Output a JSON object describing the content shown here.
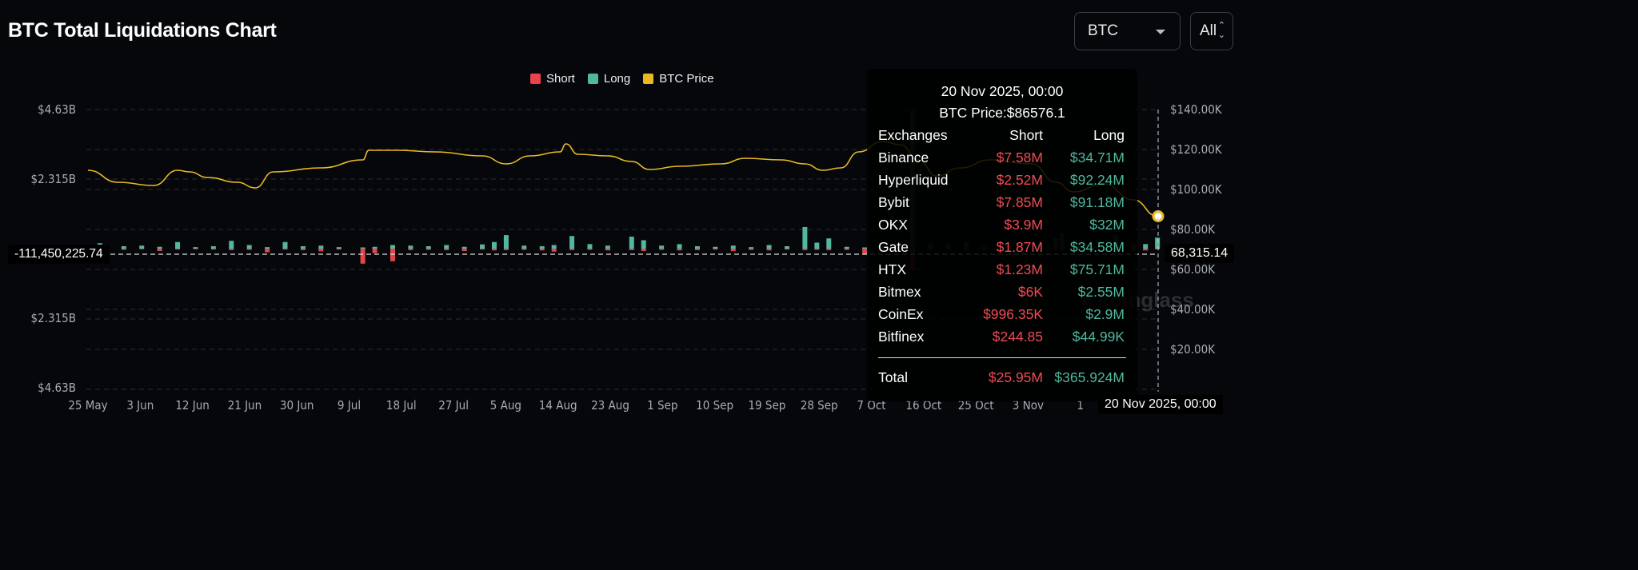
{
  "header": {
    "title": "BTC Total Liquidations Chart",
    "coin_select": "BTC",
    "range_select": "All"
  },
  "legend": [
    {
      "label": "Short",
      "color": "#e8434c"
    },
    {
      "label": "Long",
      "color": "#4fb89e"
    },
    {
      "label": "BTC Price",
      "color": "#e8b923"
    }
  ],
  "watermark": "coinglass",
  "chart_data": {
    "type": "bar",
    "title": "BTC Total Liquidations Chart",
    "left_axis": {
      "ticks": [
        "$4.63B",
        "$2.315B",
        "$2.315B",
        "$4.63B"
      ],
      "values": [
        4.63,
        2.315,
        -2.315,
        -4.63
      ],
      "range_billion": [
        -4.63,
        4.63
      ]
    },
    "right_axis": {
      "ticks": [
        "$140.00K",
        "$120.00K",
        "$100.00K",
        "$80.00K",
        "$60.00K",
        "$40.00K",
        "$20.00K"
      ],
      "values": [
        140,
        120,
        100,
        80,
        60,
        40,
        20
      ],
      "range_k": [
        0,
        140
      ]
    },
    "x_ticks": [
      "25 May",
      "3 Jun",
      "12 Jun",
      "21 Jun",
      "30 Jun",
      "9 Jul",
      "18 Jul",
      "27 Jul",
      "5 Aug",
      "14 Aug",
      "23 Aug",
      "1 Sep",
      "10 Sep",
      "19 Sep",
      "28 Sep",
      "7 Oct",
      "16 Oct",
      "25 Oct",
      "3 Nov",
      "1"
    ],
    "grid": true,
    "legend_position": "top",
    "bars_billion": [
      {
        "date": "25 May",
        "long": 0.05,
        "short": 0.02
      },
      {
        "date": "27 May",
        "long": 0.18,
        "short": 0.03
      },
      {
        "date": "31 May",
        "long": 0.08,
        "short": 0.04
      },
      {
        "date": "3 Jun",
        "long": 0.1,
        "short": 0.02
      },
      {
        "date": "6 Jun",
        "long": 0.06,
        "short": 0.08
      },
      {
        "date": "9 Jun",
        "long": 0.22,
        "short": 0.03
      },
      {
        "date": "12 Jun",
        "long": 0.05,
        "short": 0.02
      },
      {
        "date": "15 Jun",
        "long": 0.08,
        "short": 0.03
      },
      {
        "date": "18 Jun",
        "long": 0.26,
        "short": 0.05
      },
      {
        "date": "21 Jun",
        "long": 0.12,
        "short": 0.04
      },
      {
        "date": "24 Jun",
        "long": 0.05,
        "short": 0.12
      },
      {
        "date": "27 Jun",
        "long": 0.22,
        "short": 0.03
      },
      {
        "date": "30 Jun",
        "long": 0.08,
        "short": 0.05
      },
      {
        "date": "3 Jul",
        "long": 0.1,
        "short": 0.09
      },
      {
        "date": "6 Jul",
        "long": 0.05,
        "short": 0.03
      },
      {
        "date": "10 Jul",
        "long": 0.04,
        "short": 0.5
      },
      {
        "date": "12 Jul",
        "long": 0.06,
        "short": 0.15
      },
      {
        "date": "15 Jul",
        "long": 0.12,
        "short": 0.42
      },
      {
        "date": "18 Jul",
        "long": 0.1,
        "short": 0.05
      },
      {
        "date": "21 Jul",
        "long": 0.08,
        "short": 0.04
      },
      {
        "date": "24 Jul",
        "long": 0.12,
        "short": 0.05
      },
      {
        "date": "27 Jul",
        "long": 0.06,
        "short": 0.08
      },
      {
        "date": "30 Jul",
        "long": 0.14,
        "short": 0.03
      },
      {
        "date": "1 Aug",
        "long": 0.22,
        "short": 0.06
      },
      {
        "date": "3 Aug",
        "long": 0.45,
        "short": 0.05
      },
      {
        "date": "6 Aug",
        "long": 0.1,
        "short": 0.04
      },
      {
        "date": "9 Aug",
        "long": 0.08,
        "short": 0.06
      },
      {
        "date": "11 Aug",
        "long": 0.12,
        "short": 0.1
      },
      {
        "date": "14 Aug",
        "long": 0.42,
        "short": 0.05
      },
      {
        "date": "17 Aug",
        "long": 0.15,
        "short": 0.04
      },
      {
        "date": "20 Aug",
        "long": 0.1,
        "short": 0.06
      },
      {
        "date": "24 Aug",
        "long": 0.4,
        "short": 0.05
      },
      {
        "date": "26 Aug",
        "long": 0.28,
        "short": 0.08
      },
      {
        "date": "29 Aug",
        "long": 0.1,
        "short": 0.04
      },
      {
        "date": "1 Sep",
        "long": 0.15,
        "short": 0.06
      },
      {
        "date": "4 Sep",
        "long": 0.08,
        "short": 0.05
      },
      {
        "date": "7 Sep",
        "long": 0.06,
        "short": 0.03
      },
      {
        "date": "10 Sep",
        "long": 0.1,
        "short": 0.08
      },
      {
        "date": "13 Sep",
        "long": 0.05,
        "short": 0.04
      },
      {
        "date": "16 Sep",
        "long": 0.12,
        "short": 0.06
      },
      {
        "date": "19 Sep",
        "long": 0.08,
        "short": 0.03
      },
      {
        "date": "22 Sep",
        "long": 0.72,
        "short": 0.05
      },
      {
        "date": "24 Sep",
        "long": 0.2,
        "short": 0.04
      },
      {
        "date": "26 Sep",
        "long": 0.34,
        "short": 0.05
      },
      {
        "date": "29 Sep",
        "long": 0.06,
        "short": 0.04
      },
      {
        "date": "2 Oct",
        "long": 0.04,
        "short": 0.18
      },
      {
        "date": "5 Oct",
        "long": 0.05,
        "short": 0.12
      },
      {
        "date": "10 Oct",
        "long": 4.6,
        "short": 0.72
      },
      {
        "date": "13 Oct",
        "long": 0.15,
        "short": 0.05
      },
      {
        "date": "16 Oct",
        "long": 0.18,
        "short": 0.04
      },
      {
        "date": "19 Oct",
        "long": 0.22,
        "short": 0.06
      },
      {
        "date": "22 Oct",
        "long": 0.08,
        "short": 0.05
      },
      {
        "date": "25 Oct",
        "long": 0.1,
        "short": 0.04
      },
      {
        "date": "28 Oct",
        "long": 0.15,
        "short": 0.06
      },
      {
        "date": "31 Oct",
        "long": 0.12,
        "short": 0.05
      },
      {
        "date": "3 Nov",
        "long": 0.35,
        "short": 0.08
      },
      {
        "date": "4 Nov",
        "long": 0.5,
        "short": 0.06
      },
      {
        "date": "7 Nov",
        "long": 0.15,
        "short": 0.04
      },
      {
        "date": "13 Nov",
        "long": 0.45,
        "short": 0.05
      },
      {
        "date": "16 Nov",
        "long": 0.18,
        "short": 0.1
      },
      {
        "date": "18 Nov",
        "long": 0.15,
        "short": 0.06
      },
      {
        "date": "20 Nov",
        "long": 0.366,
        "short": 0.026
      }
    ],
    "price_k": [
      {
        "date": "25 May",
        "v": 109.6
      },
      {
        "date": "30 May",
        "v": 103.6
      },
      {
        "date": "5 Jun",
        "v": 102
      },
      {
        "date": "9 Jun",
        "v": 109.6
      },
      {
        "date": "11 Jun",
        "v": 108.8
      },
      {
        "date": "14 Jun",
        "v": 106
      },
      {
        "date": "19 Jun",
        "v": 103.6
      },
      {
        "date": "22 Jun",
        "v": 100.8
      },
      {
        "date": "25 Jun",
        "v": 108.8
      },
      {
        "date": "3 Jul",
        "v": 110.8
      },
      {
        "date": "10 Jul",
        "v": 114.8
      },
      {
        "date": "11 Jul",
        "v": 119.6
      },
      {
        "date": "16 Jul",
        "v": 119.6
      },
      {
        "date": "22 Jul",
        "v": 118.8
      },
      {
        "date": "30 Jul",
        "v": 116.8
      },
      {
        "date": "3 Aug",
        "v": 112.8
      },
      {
        "date": "7 Aug",
        "v": 116.8
      },
      {
        "date": "12 Aug",
        "v": 118.8
      },
      {
        "date": "13 Aug",
        "v": 122.8
      },
      {
        "date": "15 Aug",
        "v": 117.6
      },
      {
        "date": "20 Aug",
        "v": 116.8
      },
      {
        "date": "24 Aug",
        "v": 114
      },
      {
        "date": "27 Aug",
        "v": 110
      },
      {
        "date": "1 Sep",
        "v": 111.6
      },
      {
        "date": "8 Sep",
        "v": 112.8
      },
      {
        "date": "12 Sep",
        "v": 115.6
      },
      {
        "date": "18 Sep",
        "v": 114.8
      },
      {
        "date": "22 Sep",
        "v": 112.8
      },
      {
        "date": "25 Sep",
        "v": 109.6
      },
      {
        "date": "28 Sep",
        "v": 110.8
      },
      {
        "date": "1 Oct",
        "v": 118.8
      },
      {
        "date": "5 Oct",
        "v": 124
      },
      {
        "date": "8 Oct",
        "v": 122.4
      },
      {
        "date": "11 Oct",
        "v": 114.8
      },
      {
        "date": "14 Oct",
        "v": 106.8
      },
      {
        "date": "18 Oct",
        "v": 110.8
      },
      {
        "date": "23 Oct",
        "v": 114.8
      },
      {
        "date": "30 Oct",
        "v": 112.8
      },
      {
        "date": "3 Nov",
        "v": 103.6
      },
      {
        "date": "6 Nov",
        "v": 98.8
      },
      {
        "date": "11 Nov",
        "v": 102.8
      },
      {
        "date": "16 Nov",
        "v": 94.8
      },
      {
        "date": "20 Nov",
        "v": 86.6
      }
    ]
  },
  "crosshair": {
    "left_value": "-111,450,225.74",
    "right_value": "68,315.14",
    "date": "20 Nov 2025, 00:00"
  },
  "tooltip": {
    "date": "20 Nov 2025, 00:00",
    "price": "BTC Price:$86576.1",
    "headers": [
      "Exchanges",
      "Short",
      "Long"
    ],
    "rows": [
      [
        "Binance",
        "$7.58M",
        "$34.71M"
      ],
      [
        "Hyperliquid",
        "$2.52M",
        "$92.24M"
      ],
      [
        "Bybit",
        "$7.85M",
        "$91.18M"
      ],
      [
        "OKX",
        "$3.9M",
        "$32M"
      ],
      [
        "Gate",
        "$1.87M",
        "$34.58M"
      ],
      [
        "HTX",
        "$1.23M",
        "$75.71M"
      ],
      [
        "Bitmex",
        "$6K",
        "$2.55M"
      ],
      [
        "CoinEx",
        "$996.35K",
        "$2.9M"
      ],
      [
        "Bitfinex",
        "$244.85",
        "$44.99K"
      ]
    ],
    "total": [
      "Total",
      "$25.95M",
      "$365.924M"
    ]
  }
}
